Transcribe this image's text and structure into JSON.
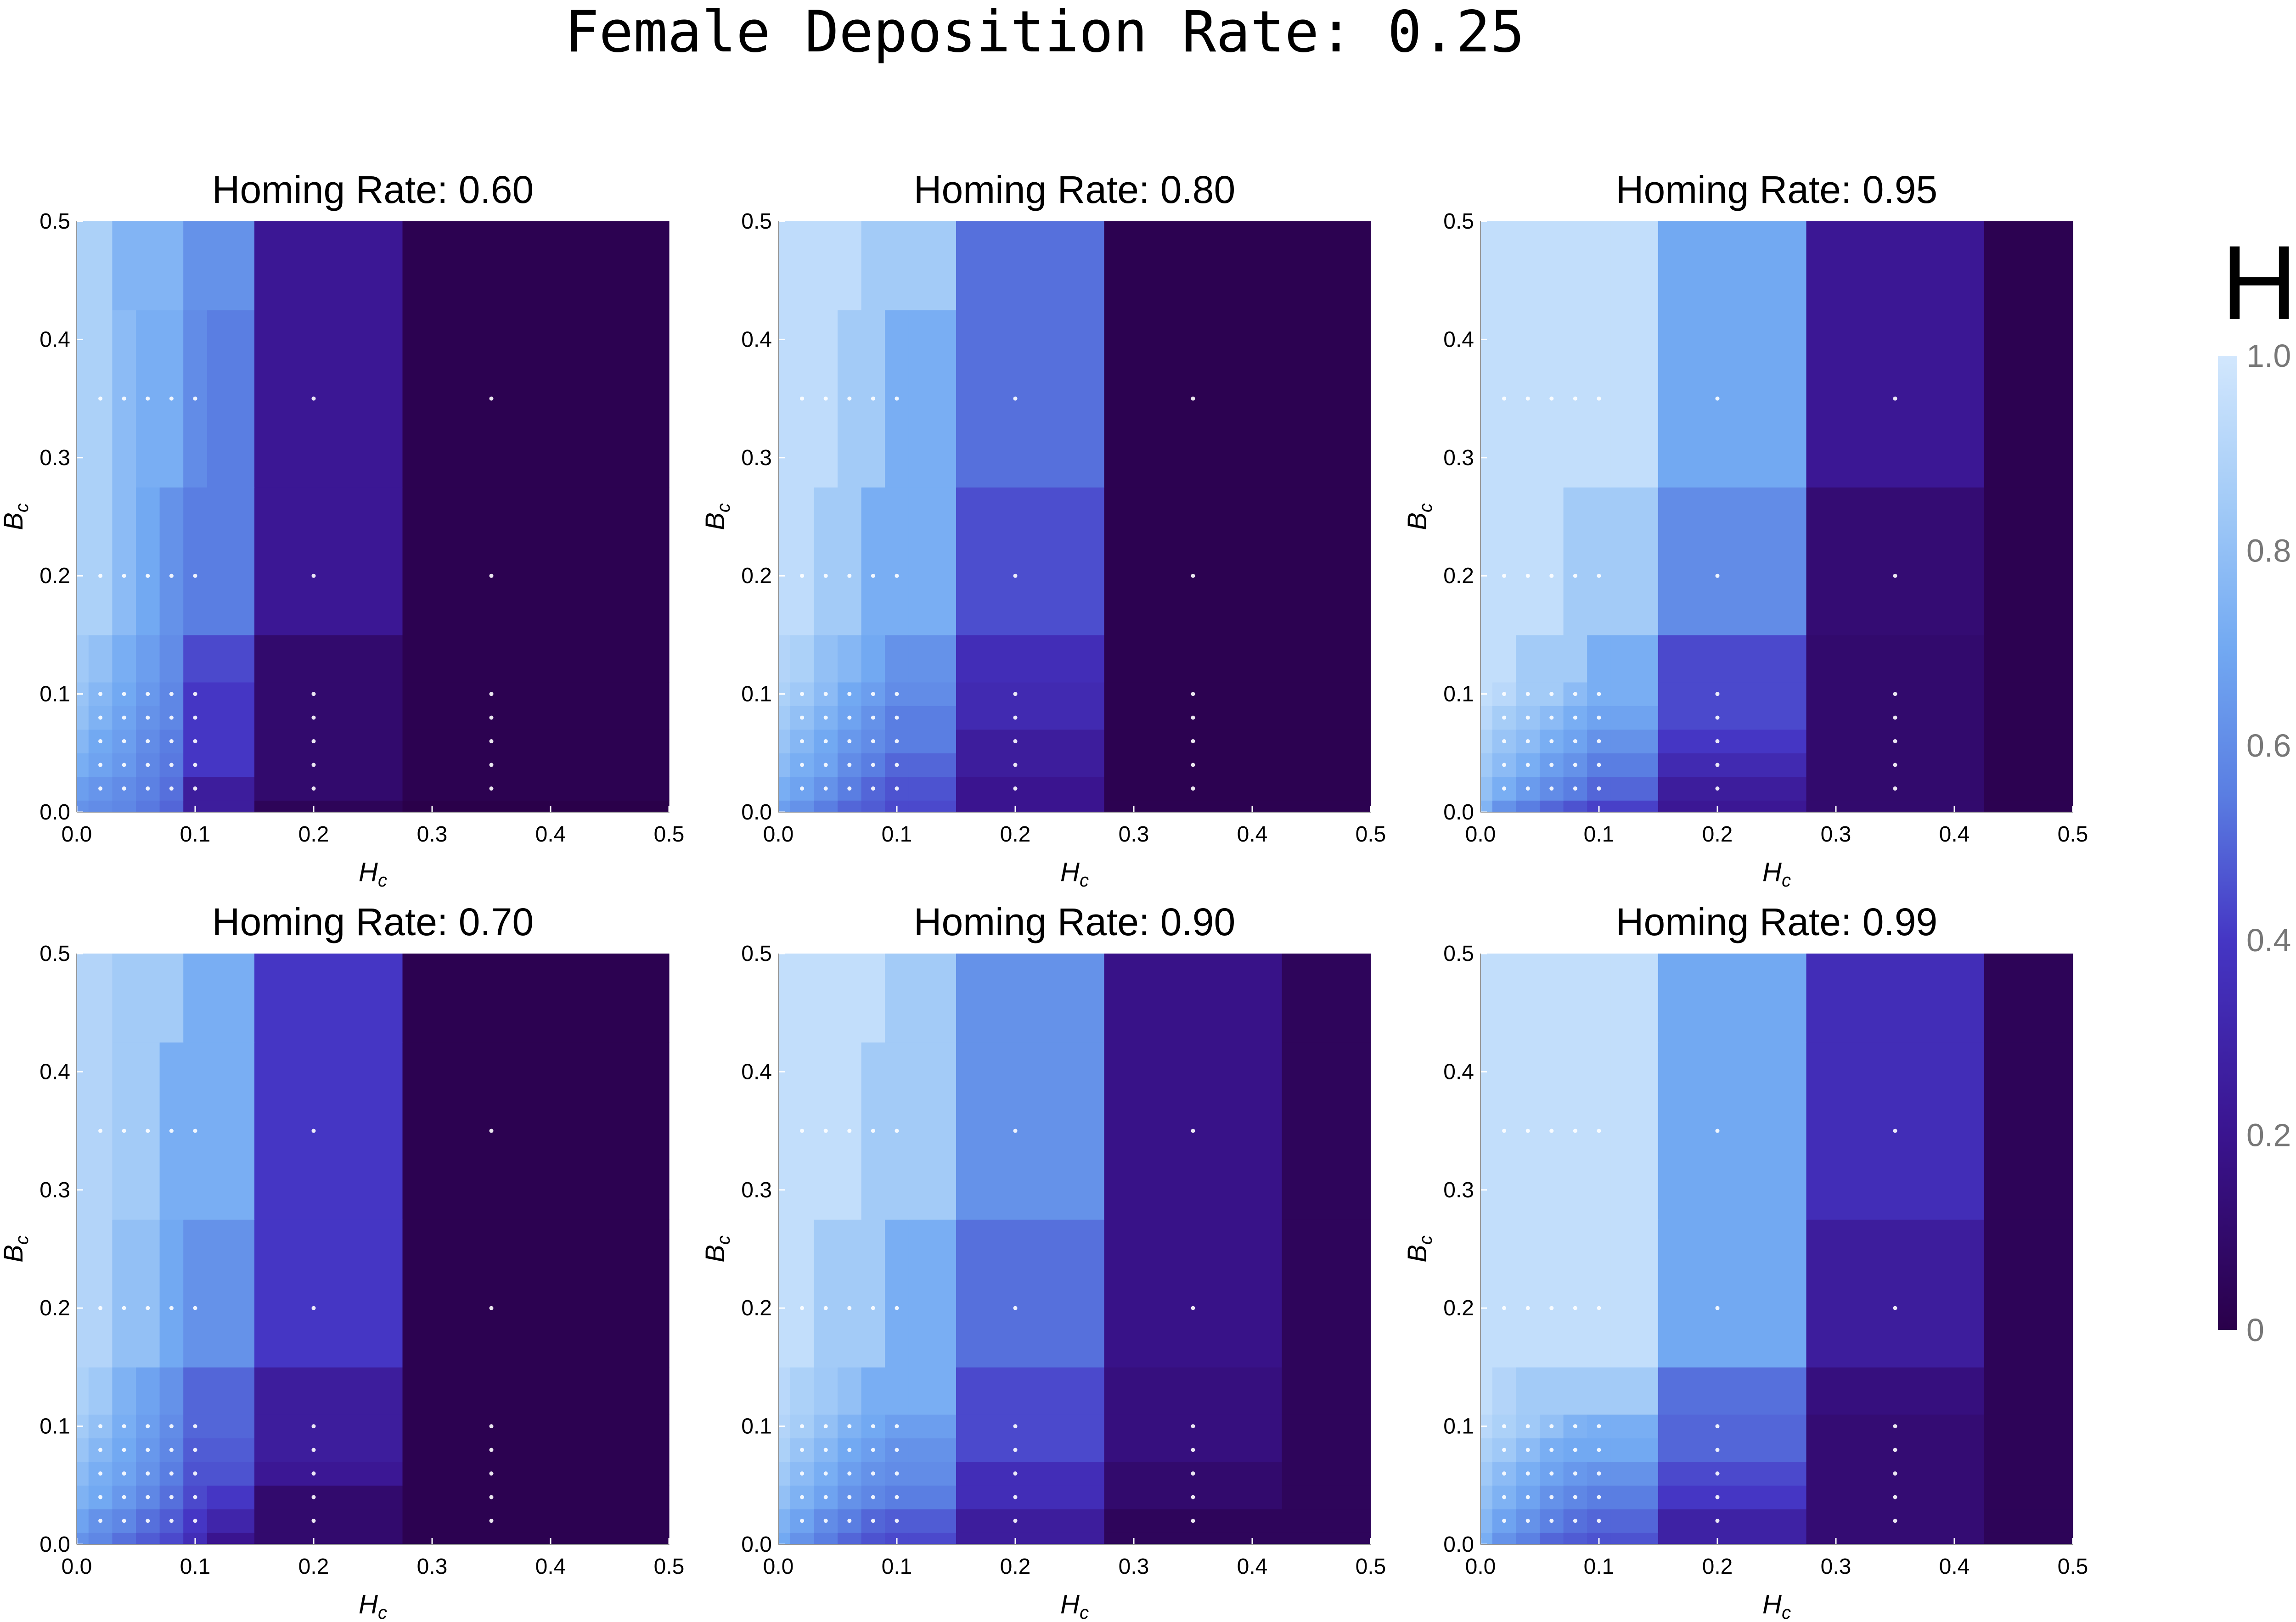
{
  "figure_title": "Female Deposition Rate: 0.25",
  "colorbar": {
    "title": "H",
    "ticks": [
      {
        "value": 1.0,
        "label": "1.0"
      },
      {
        "value": 0.8,
        "label": "0.8"
      },
      {
        "value": 0.6,
        "label": "0.6"
      },
      {
        "value": 0.4,
        "label": "0.4"
      },
      {
        "value": 0.2,
        "label": "0.2"
      },
      {
        "value": 0.0,
        "label": "0"
      }
    ],
    "color_stops": [
      {
        "value": 0.0,
        "color": "#2a004a"
      },
      {
        "value": 0.2,
        "color": "#3a148f"
      },
      {
        "value": 0.4,
        "color": "#4536c4"
      },
      {
        "value": 0.55,
        "color": "#5a7ee2"
      },
      {
        "value": 0.7,
        "color": "#72a9f2"
      },
      {
        "value": 0.85,
        "color": "#a3cbf7"
      },
      {
        "value": 1.0,
        "color": "#d2e7fd"
      }
    ]
  },
  "chart_data": [
    {
      "type": "heatmap",
      "title": "Homing Rate: 0.60",
      "xlabel": "H_c",
      "ylabel": "B_c",
      "xlim": [
        0,
        0.5
      ],
      "ylim": [
        0,
        0.5
      ],
      "xticks": [
        "0.0",
        "0.1",
        "0.2",
        "0.3",
        "0.4",
        "0.5"
      ],
      "yticks": [
        "0.0",
        "0.1",
        "0.2",
        "0.3",
        "0.4",
        "0.5"
      ],
      "x_edges": [
        0,
        0.01,
        0.03,
        0.05,
        0.07,
        0.09,
        0.11,
        0.15,
        0.275,
        0.425,
        0.5
      ],
      "y_edges": [
        0,
        0.01,
        0.03,
        0.05,
        0.07,
        0.09,
        0.11,
        0.15,
        0.275,
        0.425,
        0.5
      ],
      "values": [
        [
          0.62,
          0.6,
          0.58,
          0.54,
          0.5,
          0.25,
          0.25,
          0.04,
          0.0,
          0.0
        ],
        [
          0.66,
          0.63,
          0.6,
          0.56,
          0.52,
          0.25,
          0.25,
          0.1,
          0.02,
          0.02
        ],
        [
          0.72,
          0.68,
          0.64,
          0.58,
          0.54,
          0.4,
          0.4,
          0.1,
          0.02,
          0.02
        ],
        [
          0.76,
          0.7,
          0.66,
          0.6,
          0.55,
          0.4,
          0.4,
          0.1,
          0.02,
          0.02
        ],
        [
          0.8,
          0.74,
          0.68,
          0.62,
          0.58,
          0.4,
          0.4,
          0.1,
          0.02,
          0.02
        ],
        [
          0.82,
          0.76,
          0.7,
          0.64,
          0.58,
          0.4,
          0.4,
          0.1,
          0.02,
          0.02
        ],
        [
          0.84,
          0.8,
          0.72,
          0.66,
          0.6,
          0.44,
          0.44,
          0.1,
          0.02,
          0.02
        ],
        [
          0.88,
          0.88,
          0.78,
          0.7,
          0.62,
          0.55,
          0.55,
          0.22,
          0.02,
          0.02
        ],
        [
          0.88,
          0.88,
          0.78,
          0.72,
          0.72,
          0.6,
          0.55,
          0.22,
          0.02,
          0.02
        ],
        [
          0.88,
          0.88,
          0.75,
          0.75,
          0.75,
          0.62,
          0.62,
          0.22,
          0.02,
          0.02
        ]
      ]
    },
    {
      "type": "heatmap",
      "title": "Homing Rate: 0.80",
      "xlabel": "H_c",
      "ylabel": "B_c",
      "xlim": [
        0,
        0.5
      ],
      "ylim": [
        0,
        0.5
      ],
      "xticks": [
        "0.0",
        "0.1",
        "0.2",
        "0.3",
        "0.4",
        "0.5"
      ],
      "yticks": [
        "0.0",
        "0.1",
        "0.2",
        "0.3",
        "0.4",
        "0.5"
      ],
      "x_edges": [
        0,
        0.01,
        0.03,
        0.05,
        0.07,
        0.09,
        0.11,
        0.15,
        0.275,
        0.425,
        0.5
      ],
      "y_edges": [
        0,
        0.01,
        0.03,
        0.05,
        0.07,
        0.09,
        0.11,
        0.15,
        0.275,
        0.425,
        0.5
      ],
      "values": [
        [
          0.66,
          0.62,
          0.55,
          0.5,
          0.48,
          0.44,
          0.44,
          0.2,
          0.02,
          0.02
        ],
        [
          0.72,
          0.68,
          0.62,
          0.55,
          0.5,
          0.46,
          0.46,
          0.2,
          0.02,
          0.02
        ],
        [
          0.78,
          0.72,
          0.68,
          0.6,
          0.55,
          0.5,
          0.5,
          0.25,
          0.02,
          0.02
        ],
        [
          0.82,
          0.76,
          0.7,
          0.64,
          0.6,
          0.55,
          0.55,
          0.25,
          0.02,
          0.02
        ],
        [
          0.85,
          0.8,
          0.74,
          0.68,
          0.62,
          0.55,
          0.55,
          0.33,
          0.02,
          0.02
        ],
        [
          0.88,
          0.84,
          0.78,
          0.7,
          0.66,
          0.6,
          0.6,
          0.33,
          0.02,
          0.02
        ],
        [
          0.9,
          0.88,
          0.8,
          0.76,
          0.7,
          0.62,
          0.62,
          0.35,
          0.02,
          0.02
        ],
        [
          0.94,
          0.94,
          0.85,
          0.85,
          0.72,
          0.72,
          0.72,
          0.45,
          0.02,
          0.02
        ],
        [
          0.94,
          0.94,
          0.94,
          0.85,
          0.85,
          0.72,
          0.72,
          0.52,
          0.02,
          0.02
        ],
        [
          0.94,
          0.94,
          0.94,
          0.94,
          0.85,
          0.85,
          0.85,
          0.52,
          0.02,
          0.02
        ]
      ]
    },
    {
      "type": "heatmap",
      "title": "Homing Rate: 0.95",
      "xlabel": "H_c",
      "ylabel": "B_c",
      "xlim": [
        0,
        0.5
      ],
      "ylim": [
        0,
        0.5
      ],
      "xticks": [
        "0.0",
        "0.1",
        "0.2",
        "0.3",
        "0.4",
        "0.5"
      ],
      "yticks": [
        "0.0",
        "0.1",
        "0.2",
        "0.3",
        "0.4",
        "0.5"
      ],
      "x_edges": [
        0,
        0.01,
        0.03,
        0.05,
        0.07,
        0.09,
        0.11,
        0.15,
        0.275,
        0.425,
        0.5
      ],
      "y_edges": [
        0,
        0.01,
        0.03,
        0.05,
        0.07,
        0.09,
        0.11,
        0.15,
        0.275,
        0.425,
        0.5
      ],
      "values": [
        [
          0.75,
          0.62,
          0.55,
          0.5,
          0.46,
          0.42,
          0.42,
          0.22,
          0.1,
          0.02
        ],
        [
          0.8,
          0.72,
          0.65,
          0.6,
          0.55,
          0.5,
          0.5,
          0.25,
          0.1,
          0.02
        ],
        [
          0.84,
          0.78,
          0.72,
          0.66,
          0.62,
          0.55,
          0.55,
          0.33,
          0.1,
          0.02
        ],
        [
          0.88,
          0.82,
          0.78,
          0.72,
          0.68,
          0.62,
          0.62,
          0.4,
          0.1,
          0.02
        ],
        [
          0.92,
          0.86,
          0.82,
          0.78,
          0.72,
          0.68,
          0.68,
          0.44,
          0.1,
          0.02
        ],
        [
          0.95,
          0.92,
          0.85,
          0.85,
          0.78,
          0.72,
          0.72,
          0.44,
          0.1,
          0.02
        ],
        [
          0.95,
          0.95,
          0.85,
          0.85,
          0.85,
          0.72,
          0.72,
          0.44,
          0.1,
          0.02
        ],
        [
          0.95,
          0.95,
          0.95,
          0.95,
          0.85,
          0.85,
          0.85,
          0.6,
          0.12,
          0.02
        ],
        [
          0.95,
          0.95,
          0.95,
          0.95,
          0.95,
          0.95,
          0.95,
          0.7,
          0.22,
          0.02
        ],
        [
          0.95,
          0.95,
          0.95,
          0.95,
          0.95,
          0.95,
          0.95,
          0.7,
          0.22,
          0.02
        ]
      ]
    },
    {
      "type": "heatmap",
      "title": "Homing Rate: 0.70",
      "xlabel": "H_c",
      "ylabel": "B_c",
      "xlim": [
        0,
        0.5
      ],
      "ylim": [
        0,
        0.5
      ],
      "xticks": [
        "0.0",
        "0.1",
        "0.2",
        "0.3",
        "0.4",
        "0.5"
      ],
      "yticks": [
        "0.0",
        "0.1",
        "0.2",
        "0.3",
        "0.4",
        "0.5"
      ],
      "x_edges": [
        0,
        0.01,
        0.03,
        0.05,
        0.07,
        0.09,
        0.11,
        0.15,
        0.275,
        0.425,
        0.5
      ],
      "y_edges": [
        0,
        0.01,
        0.03,
        0.05,
        0.07,
        0.09,
        0.11,
        0.15,
        0.275,
        0.425,
        0.5
      ],
      "values": [
        [
          0.62,
          0.58,
          0.52,
          0.48,
          0.44,
          0.35,
          0.2,
          0.1,
          0.02,
          0.02
        ],
        [
          0.68,
          0.62,
          0.58,
          0.52,
          0.48,
          0.4,
          0.3,
          0.1,
          0.02,
          0.02
        ],
        [
          0.74,
          0.7,
          0.64,
          0.58,
          0.52,
          0.44,
          0.4,
          0.1,
          0.02,
          0.02
        ],
        [
          0.78,
          0.72,
          0.68,
          0.62,
          0.55,
          0.46,
          0.46,
          0.22,
          0.02,
          0.02
        ],
        [
          0.82,
          0.76,
          0.7,
          0.64,
          0.58,
          0.48,
          0.48,
          0.25,
          0.02,
          0.02
        ],
        [
          0.85,
          0.8,
          0.72,
          0.66,
          0.6,
          0.5,
          0.5,
          0.25,
          0.02,
          0.02
        ],
        [
          0.88,
          0.84,
          0.74,
          0.68,
          0.62,
          0.5,
          0.5,
          0.25,
          0.02,
          0.02
        ],
        [
          0.9,
          0.9,
          0.8,
          0.8,
          0.7,
          0.62,
          0.62,
          0.4,
          0.02,
          0.02
        ],
        [
          0.9,
          0.9,
          0.85,
          0.85,
          0.72,
          0.72,
          0.72,
          0.4,
          0.02,
          0.02
        ],
        [
          0.9,
          0.9,
          0.85,
          0.85,
          0.85,
          0.72,
          0.72,
          0.4,
          0.02,
          0.02
        ]
      ]
    },
    {
      "type": "heatmap",
      "title": "Homing Rate: 0.90",
      "xlabel": "H_c",
      "ylabel": "B_c",
      "xlim": [
        0,
        0.5
      ],
      "ylim": [
        0,
        0.5
      ],
      "xticks": [
        "0.0",
        "0.1",
        "0.2",
        "0.3",
        "0.4",
        "0.5"
      ],
      "yticks": [
        "0.0",
        "0.1",
        "0.2",
        "0.3",
        "0.4",
        "0.5"
      ],
      "x_edges": [
        0,
        0.01,
        0.03,
        0.05,
        0.07,
        0.09,
        0.11,
        0.15,
        0.275,
        0.425,
        0.5
      ],
      "y_edges": [
        0,
        0.01,
        0.03,
        0.05,
        0.07,
        0.09,
        0.11,
        0.15,
        0.275,
        0.425,
        0.5
      ],
      "values": [
        [
          0.7,
          0.62,
          0.55,
          0.5,
          0.46,
          0.44,
          0.44,
          0.25,
          0.05,
          0.05
        ],
        [
          0.74,
          0.68,
          0.6,
          0.55,
          0.5,
          0.48,
          0.48,
          0.25,
          0.05,
          0.05
        ],
        [
          0.8,
          0.74,
          0.68,
          0.62,
          0.58,
          0.55,
          0.55,
          0.35,
          0.1,
          0.05
        ],
        [
          0.84,
          0.78,
          0.72,
          0.66,
          0.62,
          0.6,
          0.6,
          0.35,
          0.1,
          0.05
        ],
        [
          0.88,
          0.82,
          0.76,
          0.7,
          0.66,
          0.62,
          0.62,
          0.44,
          0.15,
          0.05
        ],
        [
          0.9,
          0.86,
          0.8,
          0.74,
          0.7,
          0.66,
          0.66,
          0.44,
          0.15,
          0.05
        ],
        [
          0.92,
          0.88,
          0.84,
          0.8,
          0.72,
          0.72,
          0.72,
          0.44,
          0.15,
          0.05
        ],
        [
          0.95,
          0.95,
          0.85,
          0.85,
          0.85,
          0.72,
          0.72,
          0.52,
          0.18,
          0.05
        ],
        [
          0.95,
          0.95,
          0.95,
          0.95,
          0.85,
          0.85,
          0.85,
          0.62,
          0.18,
          0.05
        ],
        [
          0.95,
          0.95,
          0.95,
          0.95,
          0.95,
          0.85,
          0.85,
          0.62,
          0.18,
          0.05
        ]
      ]
    },
    {
      "type": "heatmap",
      "title": "Homing Rate: 0.99",
      "xlabel": "H_c",
      "ylabel": "B_c",
      "xlim": [
        0,
        0.5
      ],
      "ylim": [
        0,
        0.5
      ],
      "xticks": [
        "0.0",
        "0.1",
        "0.2",
        "0.3",
        "0.4",
        "0.5"
      ],
      "yticks": [
        "0.0",
        "0.1",
        "0.2",
        "0.3",
        "0.4",
        "0.5"
      ],
      "x_edges": [
        0,
        0.01,
        0.03,
        0.05,
        0.07,
        0.09,
        0.11,
        0.15,
        0.275,
        0.425,
        0.5
      ],
      "y_edges": [
        0,
        0.01,
        0.03,
        0.05,
        0.07,
        0.09,
        0.11,
        0.15,
        0.275,
        0.425,
        0.5
      ],
      "values": [
        [
          0.72,
          0.62,
          0.56,
          0.5,
          0.48,
          0.46,
          0.46,
          0.28,
          0.12,
          0.04
        ],
        [
          0.76,
          0.68,
          0.62,
          0.56,
          0.52,
          0.5,
          0.5,
          0.28,
          0.12,
          0.04
        ],
        [
          0.8,
          0.74,
          0.68,
          0.62,
          0.58,
          0.55,
          0.55,
          0.4,
          0.12,
          0.04
        ],
        [
          0.84,
          0.78,
          0.72,
          0.68,
          0.64,
          0.62,
          0.62,
          0.44,
          0.12,
          0.04
        ],
        [
          0.88,
          0.84,
          0.78,
          0.72,
          0.7,
          0.7,
          0.7,
          0.5,
          0.12,
          0.04
        ],
        [
          0.92,
          0.88,
          0.84,
          0.8,
          0.74,
          0.72,
          0.72,
          0.5,
          0.12,
          0.04
        ],
        [
          0.95,
          0.9,
          0.85,
          0.85,
          0.85,
          0.85,
          0.85,
          0.52,
          0.15,
          0.04
        ],
        [
          0.95,
          0.95,
          0.95,
          0.95,
          0.95,
          0.95,
          0.95,
          0.7,
          0.25,
          0.04
        ],
        [
          0.95,
          0.95,
          0.95,
          0.95,
          0.95,
          0.95,
          0.95,
          0.7,
          0.35,
          0.04
        ],
        [
          0.95,
          0.95,
          0.95,
          0.95,
          0.95,
          0.95,
          0.95,
          0.7,
          0.35,
          0.04
        ]
      ]
    }
  ]
}
